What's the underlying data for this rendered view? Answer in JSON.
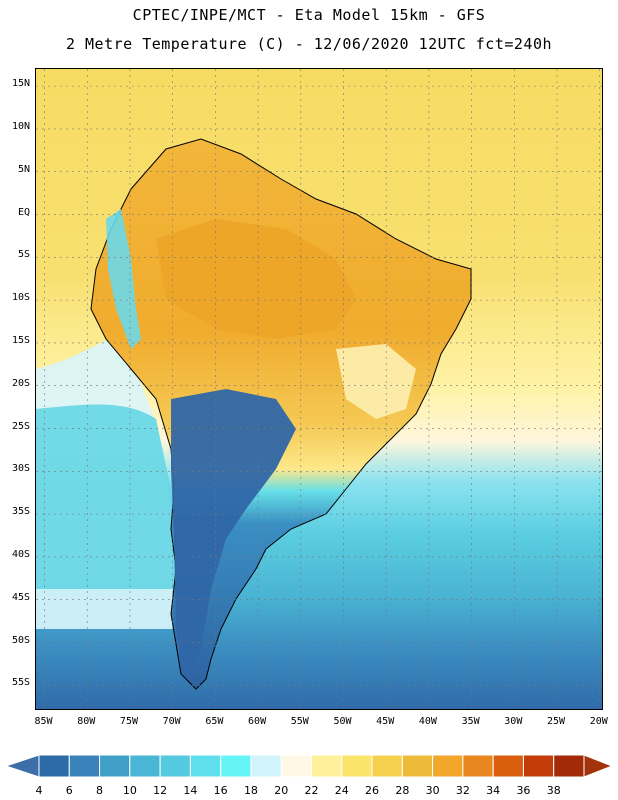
{
  "header": {
    "line1": "CPTEC/INPE/MCT -  Eta Model 15km - GFS",
    "line2": "2 Metre Temperature (C) - 12/06/2020 12UTC fct=240h"
  },
  "map": {
    "lat_labels": [
      "15N",
      "10N",
      "5N",
      "EQ",
      "5S",
      "10S",
      "15S",
      "20S",
      "25S",
      "30S",
      "35S",
      "40S",
      "45S",
      "50S",
      "55S"
    ],
    "lat_values": [
      15,
      10,
      5,
      0,
      -5,
      -10,
      -15,
      -20,
      -25,
      -30,
      -35,
      -40,
      -45,
      -50,
      -55
    ],
    "lon_labels": [
      "85W",
      "80W",
      "75W",
      "70W",
      "65W",
      "60W",
      "55W",
      "50W",
      "45W",
      "40W",
      "35W",
      "30W",
      "25W",
      "20W"
    ],
    "lon_values": [
      -85,
      -80,
      -75,
      -70,
      -65,
      -60,
      -55,
      -50,
      -45,
      -40,
      -35,
      -30,
      -25,
      -20
    ],
    "extent": {
      "lon_min": -86,
      "lon_max": -19.5,
      "lat_min": -58,
      "lat_max": 17
    }
  },
  "colorbar": {
    "labels": [
      "4",
      "6",
      "8",
      "10",
      "12",
      "14",
      "16",
      "18",
      "20",
      "22",
      "24",
      "26",
      "28",
      "30",
      "32",
      "34",
      "36",
      "38"
    ],
    "colors": [
      "#2d6aa8",
      "#3a82bb",
      "#41a0c8",
      "#49b6d6",
      "#55c9e0",
      "#5fdfec",
      "#67f4f7",
      "#d2f4fb",
      "#fff8e6",
      "#fff19b",
      "#fbe46a",
      "#f5d04e",
      "#edbb3a",
      "#f2a62a",
      "#e8871f",
      "#d95f0f",
      "#c23d0a",
      "#a22a06"
    ],
    "under_color": "#3c6fa8",
    "over_color": "#a2330b"
  }
}
